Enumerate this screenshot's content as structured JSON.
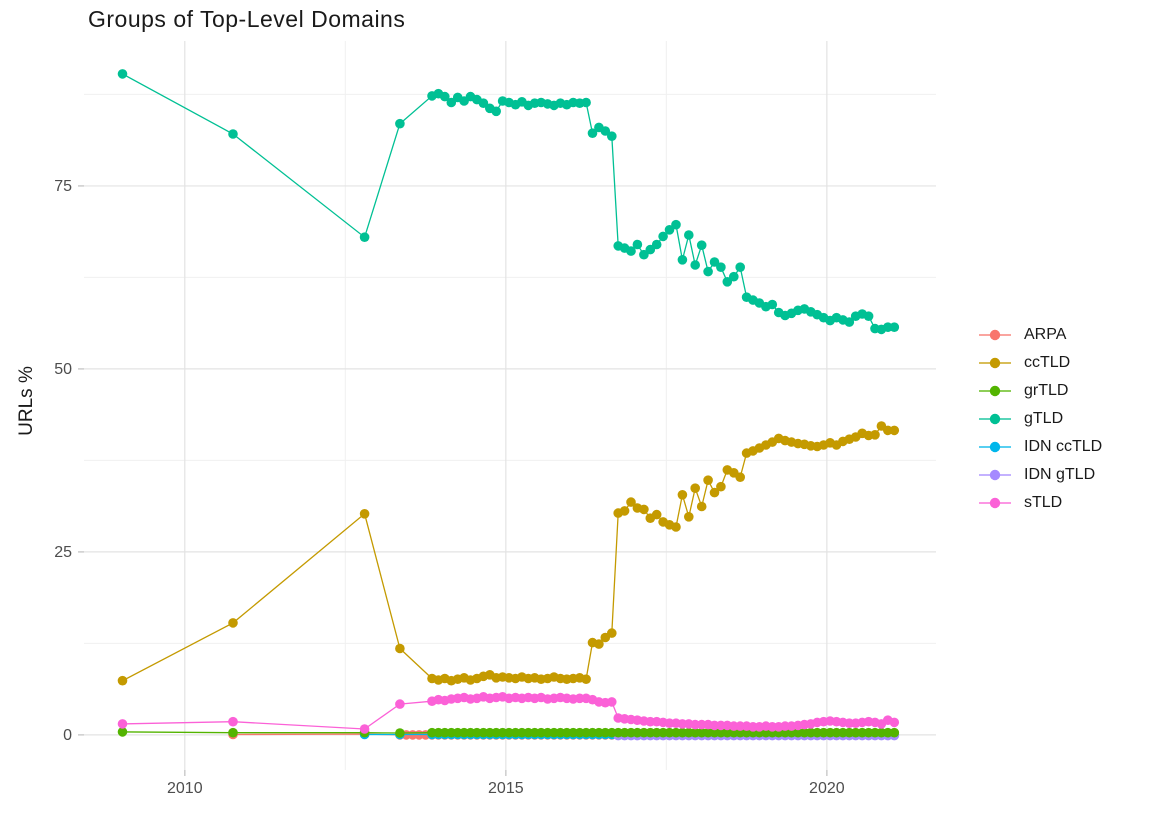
{
  "chart_data": {
    "type": "line",
    "title": "Groups of Top-Level Domains",
    "xlabel": "",
    "ylabel": "URLs %",
    "x_ticks": [
      {
        "value": 2010,
        "label": "2010"
      },
      {
        "value": 2015,
        "label": "2015"
      },
      {
        "value": 2020,
        "label": "2020"
      }
    ],
    "y_ticks": [
      {
        "value": 0,
        "label": "0"
      },
      {
        "value": 25,
        "label": "25"
      },
      {
        "value": 50,
        "label": "50"
      },
      {
        "value": 75,
        "label": "75"
      }
    ],
    "xlim": [
      2008.43,
      2021.7
    ],
    "ylim": [
      -4.8,
      94.8
    ],
    "grid": {
      "major_x": [
        2010,
        2015,
        2020
      ],
      "minor_x": [
        2012.5,
        2017.5
      ],
      "major_y": [
        0,
        25,
        50,
        75
      ],
      "minor_y": [
        12.5,
        37.5,
        62.5,
        87.5
      ]
    },
    "legend_position": "right",
    "series": [
      {
        "name": "ARPA",
        "color": "#F8766D",
        "points": [
          [
            2010.75,
            0.05
          ],
          [
            2012.8,
            0.1
          ]
        ],
        "dense": {
          "x_start": 2013.35,
          "x_step": 0.1,
          "count": 78,
          "y_const": 0.0
        }
      },
      {
        "name": "ccTLD",
        "color": "#C49A00",
        "points": [
          [
            2009.03,
            7.4
          ],
          [
            2010.75,
            15.3
          ],
          [
            2012.8,
            30.2
          ],
          [
            2013.35,
            11.8
          ]
        ],
        "dense": {
          "x_start": 2013.85,
          "x_step": 0.1,
          "y": [
            7.7,
            7.5,
            7.7,
            7.4,
            7.6,
            7.8,
            7.5,
            7.7,
            8.0,
            8.2,
            7.8,
            7.9,
            7.8,
            7.7,
            7.9,
            7.7,
            7.8,
            7.6,
            7.7,
            7.9,
            7.7,
            7.6,
            7.7,
            7.8,
            7.6,
            12.6,
            12.4,
            13.3,
            13.9,
            30.3,
            30.6,
            31.8,
            31.0,
            30.8,
            29.6,
            30.1,
            29.1,
            28.7,
            28.4,
            32.8,
            29.8,
            33.7,
            31.2,
            34.8,
            33.1,
            33.9,
            36.2,
            35.8,
            35.2,
            38.5,
            38.8,
            39.2,
            39.6,
            40.0,
            40.5,
            40.2,
            40.0,
            39.8,
            39.7,
            39.5,
            39.4,
            39.6,
            39.9,
            39.6,
            40.1,
            40.4,
            40.7,
            41.2,
            40.9,
            41.0,
            42.2,
            41.6,
            41.6
          ]
        }
      },
      {
        "name": "grTLD",
        "color": "#53B400",
        "points": [
          [
            2009.03,
            0.4
          ],
          [
            2010.75,
            0.3
          ],
          [
            2012.8,
            0.3
          ],
          [
            2013.35,
            0.25
          ]
        ],
        "dense": {
          "x_start": 2013.85,
          "x_step": 0.1,
          "count": 73,
          "y_const": 0.3
        }
      },
      {
        "name": "gTLD",
        "color": "#00C094",
        "points": [
          [
            2009.03,
            90.3
          ],
          [
            2010.75,
            82.1
          ],
          [
            2012.8,
            68.0
          ],
          [
            2013.35,
            83.5
          ]
        ],
        "dense": {
          "x_start": 2013.85,
          "x_step": 0.1,
          "y": [
            87.3,
            87.6,
            87.2,
            86.4,
            87.1,
            86.6,
            87.2,
            86.8,
            86.3,
            85.6,
            85.2,
            86.6,
            86.4,
            86.1,
            86.5,
            86.0,
            86.3,
            86.4,
            86.2,
            86.0,
            86.3,
            86.1,
            86.4,
            86.3,
            86.4,
            82.2,
            83.0,
            82.5,
            81.8,
            66.8,
            66.5,
            66.1,
            67.0,
            65.6,
            66.3,
            67.0,
            68.1,
            69.0,
            69.7,
            64.9,
            68.3,
            64.2,
            66.9,
            63.3,
            64.6,
            63.9,
            61.9,
            62.6,
            63.9,
            59.8,
            59.4,
            59.0,
            58.5,
            58.8,
            57.7,
            57.3,
            57.6,
            58.0,
            58.2,
            57.8,
            57.4,
            57.0,
            56.6,
            57.0,
            56.7,
            56.4,
            57.2,
            57.5,
            57.2,
            55.5,
            55.4,
            55.7,
            55.7
          ]
        }
      },
      {
        "name": "IDN ccTLD",
        "color": "#00B6EB",
        "points": [
          [
            2012.8,
            0.05
          ],
          [
            2013.35,
            0.05
          ]
        ],
        "dense": {
          "x_start": 2013.85,
          "x_step": 0.1,
          "count": 73,
          "y_const": 0.05
        }
      },
      {
        "name": "IDN gTLD",
        "color": "#A58AFF",
        "points": [],
        "dense": {
          "x_start": 2016.75,
          "x_step": 0.1,
          "count": 44,
          "y_const": -0.1
        }
      },
      {
        "name": "sTLD",
        "color": "#FB61D7",
        "points": [
          [
            2009.03,
            1.5
          ],
          [
            2010.75,
            1.8
          ],
          [
            2012.8,
            0.8
          ],
          [
            2013.35,
            4.2
          ]
        ],
        "dense": {
          "x_start": 2013.85,
          "x_step": 0.1,
          "y": [
            4.6,
            4.8,
            4.7,
            4.9,
            5.0,
            5.1,
            4.9,
            5.0,
            5.2,
            5.0,
            5.1,
            5.2,
            5.0,
            5.1,
            5.0,
            5.1,
            5.0,
            5.1,
            4.9,
            5.0,
            5.1,
            5.0,
            4.9,
            5.0,
            5.0,
            4.8,
            4.5,
            4.4,
            4.5,
            2.3,
            2.2,
            2.1,
            2.0,
            1.9,
            1.8,
            1.8,
            1.7,
            1.6,
            1.6,
            1.5,
            1.5,
            1.4,
            1.4,
            1.4,
            1.3,
            1.3,
            1.3,
            1.2,
            1.2,
            1.2,
            1.1,
            1.1,
            1.2,
            1.1,
            1.1,
            1.2,
            1.2,
            1.3,
            1.4,
            1.5,
            1.7,
            1.8,
            1.9,
            1.8,
            1.7,
            1.6,
            1.6,
            1.7,
            1.8,
            1.7,
            1.5,
            2.0,
            1.7
          ]
        }
      }
    ],
    "style": {
      "grid_major_color": "#e3e3e3",
      "grid_minor_color": "#f0f0f0",
      "tick_color": "#cccccc",
      "tick_label_color": "#4d4d4d",
      "point_radius": 4.8,
      "line_width": 1.3
    }
  }
}
